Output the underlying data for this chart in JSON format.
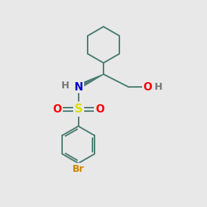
{
  "background_color": "#e8e8e8",
  "bond_color": "#4a7c70",
  "bond_width": 1.5,
  "atom_colors": {
    "N": "#0000cc",
    "S": "#dddd00",
    "O": "#ff0000",
    "Br": "#cc8800",
    "H": "#777777",
    "C": "#4a7c70"
  },
  "font_size": 10,
  "fig_size": [
    3.0,
    3.0
  ],
  "dpi": 100,
  "xlim": [
    0,
    10
  ],
  "ylim": [
    0,
    10
  ]
}
